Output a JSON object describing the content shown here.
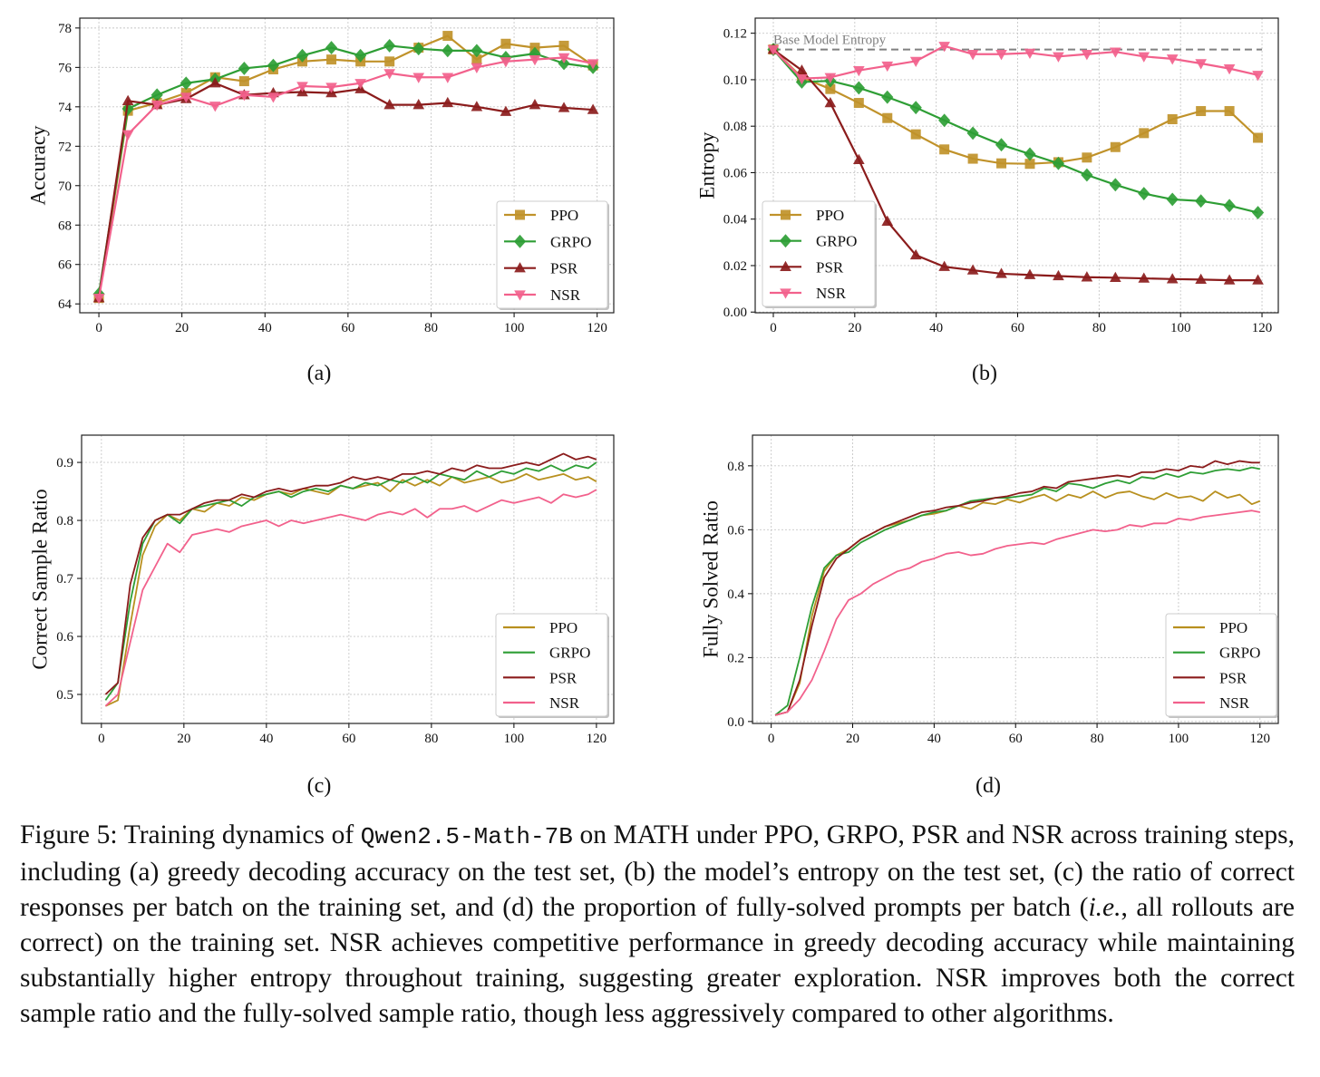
{
  "chart_data": [
    {
      "type": "line",
      "panel_label": "(a)",
      "title": "",
      "xlabel": "",
      "ylabel": "Accuracy",
      "xlim": [
        -4.6,
        124
      ],
      "ylim": [
        63.55,
        78.5
      ],
      "xticks": [
        0,
        20,
        40,
        60,
        80,
        100,
        120
      ],
      "xtick_labels": [
        "0",
        "20",
        "40",
        "60",
        "80",
        "100",
        "120"
      ],
      "yticks": [
        64,
        66,
        68,
        70,
        72,
        74,
        76,
        78
      ],
      "ytick_labels": [
        "64",
        "66",
        "68",
        "70",
        "72",
        "74",
        "76",
        "78"
      ],
      "grid": true,
      "legend": "lower-right",
      "x": [
        0,
        7,
        14,
        21,
        28,
        35,
        42,
        49,
        56,
        63,
        70,
        77,
        84,
        91,
        98,
        105,
        112,
        119
      ],
      "series": [
        {
          "name": "PPO",
          "color": "#c0922a",
          "marker": "square",
          "values": [
            64.3,
            73.8,
            74.2,
            74.7,
            75.5,
            75.3,
            75.9,
            76.3,
            76.4,
            76.3,
            76.3,
            77.0,
            77.6,
            76.4,
            77.2,
            77.0,
            77.1,
            76.1
          ]
        },
        {
          "name": "GRPO",
          "color": "#2e9e35",
          "marker": "diamond",
          "values": [
            64.5,
            73.9,
            74.6,
            75.2,
            75.4,
            75.95,
            76.1,
            76.6,
            77.0,
            76.6,
            77.1,
            76.95,
            76.85,
            76.85,
            76.5,
            76.7,
            76.2,
            76.0
          ]
        },
        {
          "name": "PSR",
          "color": "#8b1c1c",
          "marker": "triangle-up",
          "values": [
            64.3,
            74.3,
            74.1,
            74.4,
            75.2,
            74.6,
            74.7,
            74.75,
            74.7,
            74.9,
            74.1,
            74.1,
            74.2,
            74.0,
            73.75,
            74.1,
            73.95,
            73.85
          ]
        },
        {
          "name": "NSR",
          "color": "#f2618c",
          "marker": "triangle-down",
          "values": [
            64.3,
            72.6,
            74.1,
            74.5,
            74.05,
            74.6,
            74.5,
            75.05,
            75.0,
            75.2,
            75.7,
            75.5,
            75.5,
            76.0,
            76.3,
            76.4,
            76.5,
            76.2
          ]
        }
      ]
    },
    {
      "type": "line",
      "panel_label": "(b)",
      "title": "",
      "xlabel": "",
      "ylabel": "Entropy",
      "xlim": [
        -4.45,
        124
      ],
      "ylim": [
        -0.0003,
        0.1265
      ],
      "xticks": [
        0,
        20,
        40,
        60,
        80,
        100,
        120
      ],
      "xtick_labels": [
        "0",
        "20",
        "40",
        "60",
        "80",
        "100",
        "120"
      ],
      "yticks": [
        0,
        0.02,
        0.04,
        0.06,
        0.08,
        0.1,
        0.12
      ],
      "ytick_labels": [
        "0.00",
        "0.02",
        "0.04",
        "0.06",
        "0.08",
        "0.10",
        "0.12"
      ],
      "grid": true,
      "legend": "lower-left",
      "reference_line": {
        "label": "Base Model Entropy",
        "value": 0.113,
        "color": "#808080",
        "style": "dashed"
      },
      "x": [
        0,
        7,
        14,
        21,
        28,
        35,
        42,
        49,
        56,
        63,
        70,
        77,
        84,
        91,
        98,
        105,
        112,
        119
      ],
      "series": [
        {
          "name": "PPO",
          "color": "#c0922a",
          "marker": "square",
          "values": [
            0.113,
            0.101,
            0.096,
            0.09,
            0.0835,
            0.0765,
            0.07,
            0.066,
            0.064,
            0.0638,
            0.0645,
            0.0665,
            0.071,
            0.077,
            0.083,
            0.0865,
            0.0865,
            0.075
          ]
        },
        {
          "name": "GRPO",
          "color": "#2e9e35",
          "marker": "diamond",
          "values": [
            0.113,
            0.099,
            0.0995,
            0.0965,
            0.0925,
            0.088,
            0.0825,
            0.077,
            0.072,
            0.068,
            0.064,
            0.059,
            0.0548,
            0.051,
            0.0485,
            0.0478,
            0.0458,
            0.0428
          ]
        },
        {
          "name": "PSR",
          "color": "#8b1c1c",
          "marker": "triangle-up",
          "values": [
            0.113,
            0.104,
            0.09,
            0.0655,
            0.039,
            0.0245,
            0.0195,
            0.018,
            0.0165,
            0.016,
            0.0155,
            0.015,
            0.0148,
            0.0145,
            0.0142,
            0.014,
            0.0137,
            0.0137
          ]
        },
        {
          "name": "NSR",
          "color": "#f2618c",
          "marker": "triangle-down",
          "values": [
            0.113,
            0.1005,
            0.101,
            0.104,
            0.106,
            0.108,
            0.1145,
            0.111,
            0.111,
            0.1115,
            0.11,
            0.111,
            0.112,
            0.11,
            0.109,
            0.107,
            0.1048,
            0.102
          ]
        }
      ]
    },
    {
      "type": "line",
      "panel_label": "(c)",
      "title": "",
      "xlabel": "",
      "ylabel": "Correct Sample Ratio",
      "xlim": [
        -4.8,
        124.2
      ],
      "ylim": [
        0.45,
        0.947
      ],
      "xticks": [
        0,
        20,
        40,
        60,
        80,
        100,
        120
      ],
      "xtick_labels": [
        "0",
        "20",
        "40",
        "60",
        "80",
        "100",
        "120"
      ],
      "yticks": [
        0.5,
        0.6,
        0.7,
        0.8,
        0.9
      ],
      "ytick_labels": [
        "0.5",
        "0.6",
        "0.7",
        "0.8",
        "0.9"
      ],
      "grid": true,
      "legend": "lower-right",
      "x": [
        1,
        4,
        7,
        10,
        13,
        16,
        19,
        22,
        25,
        28,
        31,
        34,
        37,
        40,
        43,
        46,
        49,
        52,
        55,
        58,
        61,
        64,
        67,
        70,
        73,
        76,
        79,
        82,
        85,
        88,
        91,
        94,
        97,
        100,
        103,
        106,
        109,
        112,
        115,
        118,
        120
      ],
      "series": [
        {
          "name": "PPO",
          "color": "#b8901f",
          "marker": "none",
          "values": [
            0.48,
            0.49,
            0.62,
            0.74,
            0.79,
            0.81,
            0.8,
            0.82,
            0.815,
            0.83,
            0.825,
            0.84,
            0.835,
            0.845,
            0.85,
            0.845,
            0.855,
            0.85,
            0.845,
            0.86,
            0.855,
            0.86,
            0.865,
            0.85,
            0.87,
            0.86,
            0.87,
            0.86,
            0.875,
            0.865,
            0.87,
            0.875,
            0.865,
            0.87,
            0.88,
            0.87,
            0.875,
            0.88,
            0.87,
            0.875,
            0.867
          ]
        },
        {
          "name": "GRPO",
          "color": "#2e9e35",
          "marker": "none",
          "values": [
            0.49,
            0.52,
            0.66,
            0.76,
            0.8,
            0.81,
            0.795,
            0.82,
            0.825,
            0.83,
            0.835,
            0.825,
            0.84,
            0.845,
            0.85,
            0.84,
            0.85,
            0.855,
            0.85,
            0.86,
            0.855,
            0.865,
            0.86,
            0.87,
            0.865,
            0.875,
            0.865,
            0.88,
            0.875,
            0.87,
            0.885,
            0.875,
            0.885,
            0.88,
            0.89,
            0.885,
            0.895,
            0.885,
            0.895,
            0.89,
            0.9
          ]
        },
        {
          "name": "PSR",
          "color": "#8b1c1c",
          "marker": "none",
          "values": [
            0.5,
            0.52,
            0.69,
            0.77,
            0.8,
            0.81,
            0.81,
            0.82,
            0.83,
            0.835,
            0.835,
            0.845,
            0.84,
            0.85,
            0.855,
            0.85,
            0.855,
            0.86,
            0.86,
            0.865,
            0.875,
            0.87,
            0.875,
            0.87,
            0.88,
            0.88,
            0.885,
            0.88,
            0.89,
            0.885,
            0.895,
            0.89,
            0.89,
            0.895,
            0.9,
            0.895,
            0.905,
            0.915,
            0.905,
            0.91,
            0.905
          ]
        },
        {
          "name": "NSR",
          "color": "#f2618c",
          "marker": "none",
          "values": [
            0.48,
            0.5,
            0.59,
            0.68,
            0.72,
            0.76,
            0.745,
            0.775,
            0.78,
            0.785,
            0.78,
            0.79,
            0.795,
            0.8,
            0.79,
            0.8,
            0.795,
            0.8,
            0.805,
            0.81,
            0.805,
            0.8,
            0.81,
            0.815,
            0.81,
            0.82,
            0.805,
            0.82,
            0.82,
            0.825,
            0.815,
            0.825,
            0.835,
            0.83,
            0.835,
            0.84,
            0.83,
            0.845,
            0.84,
            0.845,
            0.853
          ]
        }
      ]
    },
    {
      "type": "line",
      "panel_label": "(d)",
      "title": "",
      "xlabel": "",
      "ylabel": "Fully Solved Ratio",
      "xlim": [
        -4.6,
        124.5
      ],
      "ylim": [
        -0.006,
        0.896
      ],
      "xticks": [
        0,
        20,
        40,
        60,
        80,
        100,
        120
      ],
      "xtick_labels": [
        "0",
        "20",
        "40",
        "60",
        "80",
        "100",
        "120"
      ],
      "yticks": [
        0.0,
        0.2,
        0.4,
        0.6,
        0.8
      ],
      "ytick_labels": [
        "0.0",
        "0.2",
        "0.4",
        "0.6",
        "0.8"
      ],
      "grid": true,
      "legend": "lower-right",
      "x": [
        1,
        4,
        7,
        10,
        13,
        16,
        19,
        22,
        25,
        28,
        31,
        34,
        37,
        40,
        43,
        46,
        49,
        52,
        55,
        58,
        61,
        64,
        67,
        70,
        73,
        76,
        79,
        82,
        85,
        88,
        91,
        94,
        97,
        100,
        103,
        106,
        109,
        112,
        115,
        118,
        120
      ],
      "series": [
        {
          "name": "PPO",
          "color": "#b8901f",
          "marker": "none",
          "values": [
            0.02,
            0.03,
            0.12,
            0.33,
            0.47,
            0.52,
            0.54,
            0.57,
            0.59,
            0.61,
            0.62,
            0.63,
            0.645,
            0.65,
            0.66,
            0.675,
            0.665,
            0.685,
            0.68,
            0.695,
            0.685,
            0.7,
            0.71,
            0.69,
            0.71,
            0.7,
            0.72,
            0.7,
            0.715,
            0.72,
            0.705,
            0.695,
            0.715,
            0.7,
            0.705,
            0.69,
            0.72,
            0.7,
            0.71,
            0.68,
            0.69
          ]
        },
        {
          "name": "GRPO",
          "color": "#2e9e35",
          "marker": "none",
          "values": [
            0.02,
            0.05,
            0.2,
            0.36,
            0.48,
            0.52,
            0.53,
            0.56,
            0.58,
            0.6,
            0.615,
            0.63,
            0.645,
            0.655,
            0.66,
            0.675,
            0.69,
            0.695,
            0.7,
            0.7,
            0.705,
            0.71,
            0.73,
            0.72,
            0.745,
            0.74,
            0.73,
            0.745,
            0.755,
            0.745,
            0.765,
            0.76,
            0.775,
            0.765,
            0.78,
            0.775,
            0.785,
            0.79,
            0.785,
            0.795,
            0.79
          ]
        },
        {
          "name": "PSR",
          "color": "#8b1c1c",
          "marker": "none",
          "values": [
            0.02,
            0.03,
            0.13,
            0.3,
            0.45,
            0.51,
            0.54,
            0.57,
            0.59,
            0.61,
            0.625,
            0.64,
            0.655,
            0.66,
            0.67,
            0.675,
            0.685,
            0.69,
            0.7,
            0.705,
            0.715,
            0.72,
            0.735,
            0.73,
            0.75,
            0.755,
            0.76,
            0.765,
            0.77,
            0.765,
            0.78,
            0.78,
            0.79,
            0.785,
            0.8,
            0.795,
            0.815,
            0.805,
            0.815,
            0.81,
            0.81
          ]
        },
        {
          "name": "NSR",
          "color": "#f2618c",
          "marker": "none",
          "values": [
            0.02,
            0.03,
            0.07,
            0.13,
            0.22,
            0.32,
            0.38,
            0.4,
            0.43,
            0.45,
            0.47,
            0.48,
            0.5,
            0.51,
            0.525,
            0.53,
            0.52,
            0.525,
            0.54,
            0.55,
            0.555,
            0.56,
            0.555,
            0.57,
            0.58,
            0.59,
            0.6,
            0.595,
            0.6,
            0.615,
            0.61,
            0.62,
            0.62,
            0.635,
            0.63,
            0.64,
            0.645,
            0.65,
            0.655,
            0.66,
            0.655
          ]
        }
      ]
    }
  ],
  "caption": {
    "part1": "Figure 5: Training dynamics of ",
    "model": "Qwen2.5-Math-7B",
    "part2": " on MATH under PPO, GRPO, PSR and NSR across training steps, including (a) greedy decoding accuracy on the test set, (b) the model’s entropy on the test set, (c) the ratio of correct responses per batch on the training set, and (d) the proportion of fully-solved prompts per batch (",
    "ie": "i.e.",
    "part3": ", all rollouts are correct) on the training set. NSR achieves competitive performance in greedy decoding accuracy while maintaining substantially higher entropy throughout training, suggesting greater exploration. NSR improves both the correct sample ratio and the fully-solved sample ratio, though less aggressively compared to other algorithms."
  }
}
